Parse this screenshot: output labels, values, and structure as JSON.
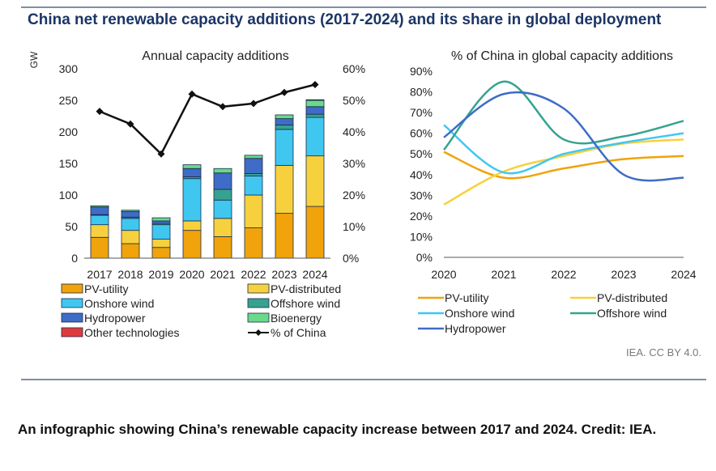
{
  "title": "China net renewable capacity additions (2017-2024) and its share in global deployment",
  "credit": "IEA. CC BY 4.0.",
  "caption": "An infographic showing China’s renewable capacity increase between 2017 and 2024. Credit: IEA.",
  "colors": {
    "title": "#1b3566",
    "pv_utility": "#f0a30a",
    "pv_distributed": "#f7d13d",
    "onshore_wind": "#3fc7f0",
    "offshore_wind": "#35a38f",
    "hydropower": "#3e6cc7",
    "bioenergy": "#69d98a",
    "other": "#e03b3b",
    "china_share": "#111111"
  },
  "chart_data": [
    {
      "type": "bar",
      "stacked": true,
      "title": "Annual capacity additions",
      "ylabel": "GW",
      "ylim": [
        0,
        300
      ],
      "yticks": [
        0,
        50,
        100,
        150,
        200,
        250,
        300
      ],
      "y2lim": [
        0,
        60
      ],
      "y2ticks": [
        "0%",
        "10%",
        "20%",
        "30%",
        "40%",
        "50%",
        "60%"
      ],
      "categories": [
        "2017",
        "2018",
        "2019",
        "2020",
        "2021",
        "2022",
        "2023",
        "2024"
      ],
      "series": [
        {
          "name": "PV-utility",
          "color_key": "pv_utility",
          "values": [
            33,
            23,
            17,
            44,
            34,
            48,
            71,
            82
          ]
        },
        {
          "name": "PV-distributed",
          "color_key": "pv_distributed",
          "values": [
            20,
            21,
            13,
            15,
            29,
            52,
            76,
            80
          ]
        },
        {
          "name": "Onshore wind",
          "color_key": "onshore_wind",
          "values": [
            15,
            19,
            23,
            67,
            29,
            30,
            57,
            61
          ]
        },
        {
          "name": "Offshore wind",
          "color_key": "offshore_wind",
          "values": [
            1,
            2,
            2,
            3,
            17,
            4,
            7,
            5
          ]
        },
        {
          "name": "Hydropower",
          "color_key": "hydropower",
          "values": [
            12,
            9,
            4,
            13,
            26,
            24,
            10,
            12
          ]
        },
        {
          "name": "Bioenergy",
          "color_key": "bioenergy",
          "values": [
            2,
            2,
            5,
            6,
            7,
            5,
            6,
            10
          ]
        },
        {
          "name": "Other technologies",
          "color_key": "other",
          "values": [
            0,
            0,
            0,
            0,
            0,
            0,
            0,
            1
          ]
        }
      ],
      "line": {
        "name": "% of China",
        "color_key": "china_share",
        "axis": "secondary",
        "values": [
          46.5,
          42.5,
          33,
          52,
          48,
          49,
          52.5,
          55
        ]
      },
      "legend": {
        "placement": "bottom",
        "items": [
          "PV-utility",
          "PV-distributed",
          "Onshore wind",
          "Offshore wind",
          "Hydropower",
          "Bioenergy",
          "Other technologies",
          "% of China"
        ]
      }
    },
    {
      "type": "line",
      "title": "% of China in global capacity additions",
      "ylim": [
        0,
        90
      ],
      "yticks": [
        "0%",
        "10%",
        "20%",
        "30%",
        "40%",
        "50%",
        "60%",
        "70%",
        "80%",
        "90%"
      ],
      "x": [
        "2020",
        "2021",
        "2022",
        "2023",
        "2024"
      ],
      "series": [
        {
          "name": "PV-utility",
          "color_key": "pv_utility",
          "values": [
            51,
            38.5,
            43,
            47.5,
            49
          ]
        },
        {
          "name": "PV-distributed",
          "color_key": "pv_distributed",
          "values": [
            25.5,
            41.5,
            49,
            55,
            57
          ]
        },
        {
          "name": "Onshore wind",
          "color_key": "onshore_wind",
          "values": [
            64,
            41,
            50,
            55.5,
            60
          ]
        },
        {
          "name": "Offshore wind",
          "color_key": "offshore_wind",
          "values": [
            52,
            85,
            57,
            58.5,
            66
          ]
        },
        {
          "name": "Hydropower",
          "color_key": "hydropower",
          "values": [
            58,
            79,
            72,
            40,
            38.5
          ]
        }
      ],
      "legend": {
        "placement": "bottom",
        "items": [
          "PV-utility",
          "PV-distributed",
          "Onshore wind",
          "Offshore wind",
          "Hydropower"
        ]
      }
    }
  ]
}
